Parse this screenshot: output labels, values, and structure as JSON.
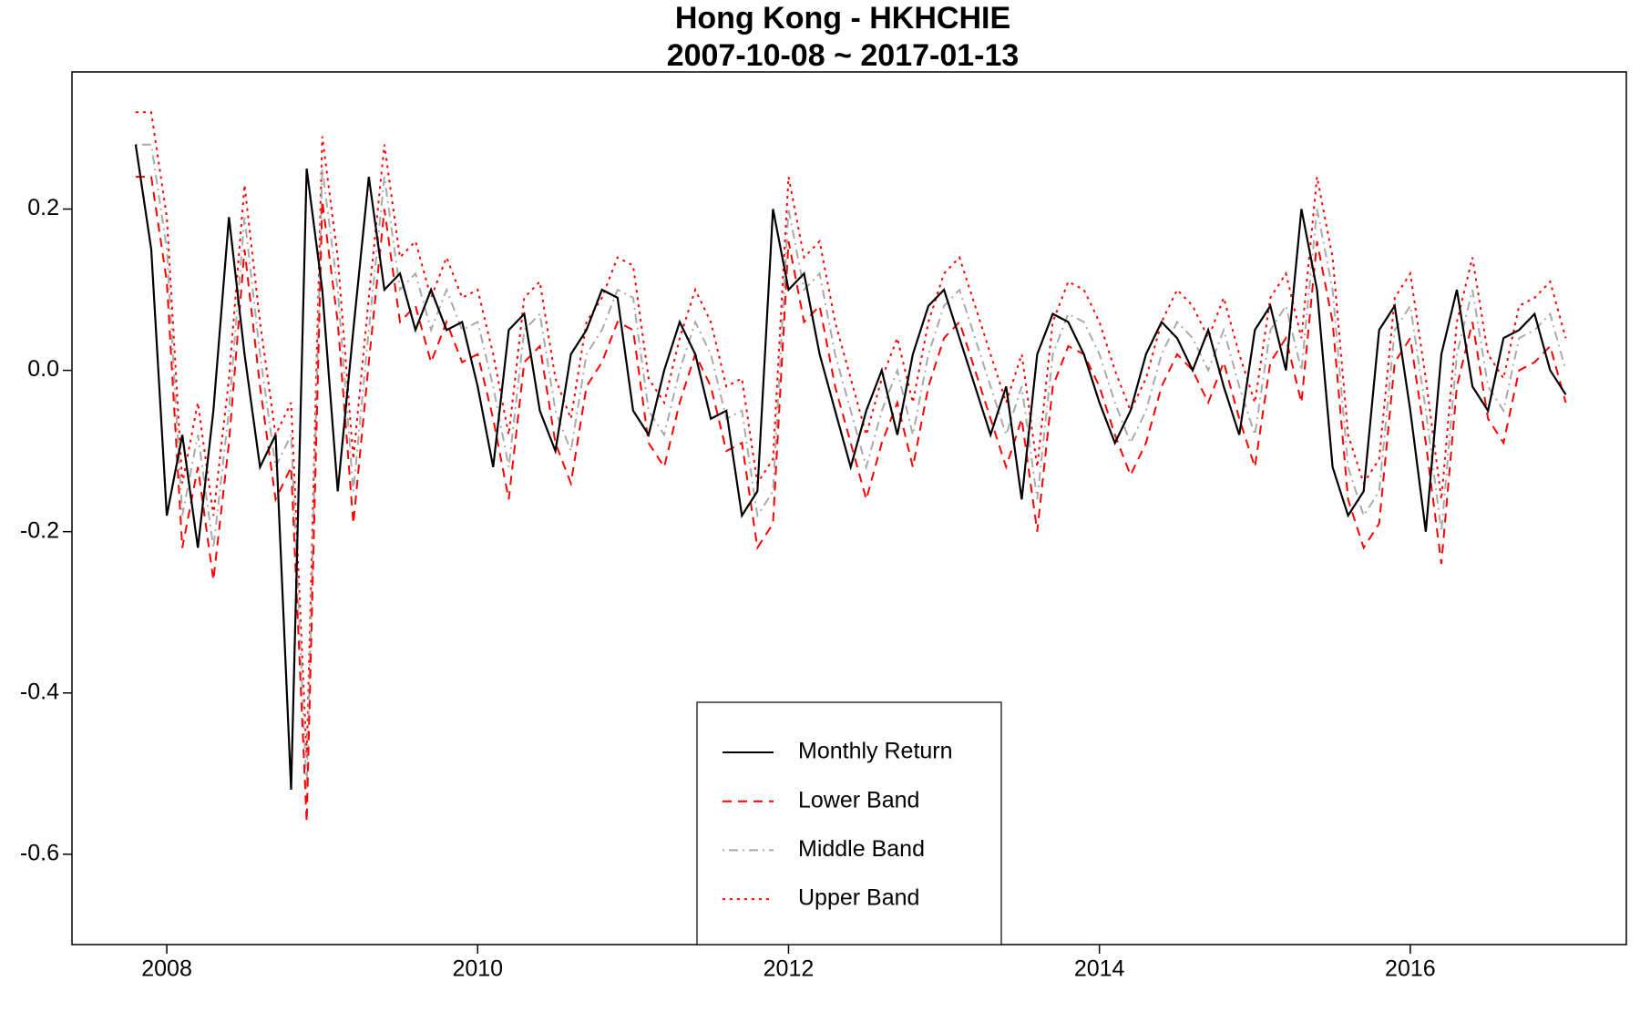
{
  "chart_data": {
    "type": "line",
    "title": "Hong Kong - HKHCHIE",
    "subtitle": "2007-10-08 ~ 2017-01-13",
    "x": [
      2007.8,
      2007.9,
      2008.0,
      2008.1,
      2008.2,
      2008.3,
      2008.4,
      2008.5,
      2008.6,
      2008.7,
      2008.8,
      2008.9,
      2009.0,
      2009.1,
      2009.2,
      2009.3,
      2009.4,
      2009.5,
      2009.6,
      2009.7,
      2009.8,
      2009.9,
      2010.0,
      2010.1,
      2010.2,
      2010.3,
      2010.4,
      2010.5,
      2010.6,
      2010.7,
      2010.8,
      2010.9,
      2011.0,
      2011.1,
      2011.2,
      2011.3,
      2011.4,
      2011.5,
      2011.6,
      2011.7,
      2011.8,
      2011.9,
      2012.0,
      2012.1,
      2012.2,
      2012.3,
      2012.4,
      2012.5,
      2012.6,
      2012.7,
      2012.8,
      2012.9,
      2013.0,
      2013.1,
      2013.2,
      2013.3,
      2013.4,
      2013.5,
      2013.6,
      2013.7,
      2013.8,
      2013.9,
      2014.0,
      2014.1,
      2014.2,
      2014.3,
      2014.4,
      2014.5,
      2014.6,
      2014.7,
      2014.8,
      2014.9,
      2015.0,
      2015.1,
      2015.2,
      2015.3,
      2015.4,
      2015.5,
      2015.6,
      2015.7,
      2015.8,
      2015.9,
      2016.0,
      2016.1,
      2016.2,
      2016.3,
      2016.4,
      2016.5,
      2016.6,
      2016.7,
      2016.8,
      2016.9,
      2017.0
    ],
    "series": [
      {
        "name": "Monthly Return",
        "color": "#000000",
        "style": "solid",
        "values": [
          0.28,
          0.15,
          -0.18,
          -0.08,
          -0.22,
          -0.05,
          0.19,
          0.02,
          -0.12,
          -0.08,
          -0.52,
          0.25,
          0.1,
          -0.15,
          0.05,
          0.24,
          0.1,
          0.12,
          0.05,
          0.1,
          0.05,
          0.06,
          -0.02,
          -0.12,
          0.05,
          0.07,
          -0.05,
          -0.1,
          0.02,
          0.05,
          0.1,
          0.09,
          -0.05,
          -0.08,
          0.0,
          0.06,
          0.02,
          -0.06,
          -0.05,
          -0.18,
          -0.15,
          0.2,
          0.1,
          0.12,
          0.02,
          -0.05,
          -0.12,
          -0.05,
          0.0,
          -0.08,
          0.02,
          0.08,
          0.1,
          0.04,
          -0.02,
          -0.08,
          -0.02,
          -0.16,
          0.02,
          0.07,
          0.06,
          0.02,
          -0.04,
          -0.09,
          -0.05,
          0.02,
          0.06,
          0.04,
          0.0,
          0.05,
          -0.02,
          -0.08,
          0.05,
          0.08,
          0.0,
          0.2,
          0.1,
          -0.12,
          -0.18,
          -0.15,
          0.05,
          0.08,
          -0.05,
          -0.2,
          0.02,
          0.1,
          -0.02,
          -0.05,
          0.04,
          0.05,
          0.07,
          0.0,
          -0.03
        ]
      },
      {
        "name": "Lower Band",
        "color": "#ff0000",
        "style": "dashed",
        "values": [
          0.24,
          0.24,
          0.11,
          -0.22,
          -0.12,
          -0.26,
          -0.09,
          0.15,
          -0.02,
          -0.16,
          -0.12,
          -0.56,
          0.21,
          0.06,
          -0.19,
          0.01,
          0.2,
          0.06,
          0.08,
          0.01,
          0.06,
          0.01,
          0.02,
          -0.06,
          -0.16,
          0.01,
          0.03,
          -0.09,
          -0.14,
          -0.02,
          0.01,
          0.06,
          0.05,
          -0.09,
          -0.12,
          -0.04,
          0.02,
          -0.02,
          -0.1,
          -0.09,
          -0.22,
          -0.19,
          0.16,
          0.06,
          0.08,
          -0.02,
          -0.09,
          -0.16,
          -0.09,
          -0.04,
          -0.12,
          -0.02,
          0.04,
          0.06,
          0.0,
          -0.06,
          -0.12,
          -0.06,
          -0.2,
          -0.02,
          0.03,
          0.02,
          -0.02,
          -0.08,
          -0.13,
          -0.09,
          -0.02,
          0.02,
          0.0,
          -0.04,
          0.01,
          -0.06,
          -0.12,
          0.01,
          0.04,
          -0.04,
          0.16,
          0.06,
          -0.16,
          -0.22,
          -0.19,
          0.01,
          0.04,
          -0.09,
          -0.24,
          -0.02,
          0.06,
          -0.06,
          -0.09,
          0.0,
          0.01,
          0.03,
          -0.04
        ]
      },
      {
        "name": "Middle Band",
        "color": "#aaaaaa",
        "style": "dotdash",
        "values": [
          0.28,
          0.28,
          0.15,
          -0.18,
          -0.08,
          -0.22,
          -0.05,
          0.19,
          0.02,
          -0.12,
          -0.08,
          -0.52,
          0.25,
          0.1,
          -0.15,
          0.05,
          0.24,
          0.1,
          0.12,
          0.05,
          0.1,
          0.05,
          0.06,
          -0.02,
          -0.12,
          0.05,
          0.07,
          -0.05,
          -0.1,
          0.02,
          0.05,
          0.1,
          0.09,
          -0.05,
          -0.08,
          0.0,
          0.06,
          0.02,
          -0.06,
          -0.05,
          -0.18,
          -0.15,
          0.2,
          0.1,
          0.12,
          0.02,
          -0.05,
          -0.12,
          -0.05,
          0.0,
          -0.08,
          0.02,
          0.08,
          0.1,
          0.04,
          -0.02,
          -0.08,
          -0.02,
          -0.16,
          0.02,
          0.07,
          0.06,
          0.02,
          -0.04,
          -0.09,
          -0.05,
          0.02,
          0.06,
          0.04,
          0.0,
          0.05,
          -0.02,
          -0.08,
          0.05,
          0.08,
          0.0,
          0.2,
          0.1,
          -0.12,
          -0.18,
          -0.15,
          0.05,
          0.08,
          -0.05,
          -0.2,
          0.02,
          0.1,
          -0.02,
          -0.05,
          0.04,
          0.05,
          0.07,
          0.0
        ]
      },
      {
        "name": "Upper Band",
        "color": "#ff0000",
        "style": "dotted",
        "values": [
          0.32,
          0.32,
          0.19,
          -0.14,
          -0.04,
          -0.18,
          -0.01,
          0.23,
          0.06,
          -0.08,
          -0.04,
          -0.48,
          0.29,
          0.14,
          -0.11,
          0.09,
          0.28,
          0.14,
          0.16,
          0.09,
          0.14,
          0.09,
          0.1,
          0.02,
          -0.08,
          0.09,
          0.11,
          -0.01,
          -0.06,
          0.06,
          0.09,
          0.14,
          0.13,
          -0.01,
          -0.04,
          0.04,
          0.1,
          0.06,
          -0.02,
          -0.01,
          -0.14,
          -0.11,
          0.24,
          0.14,
          0.16,
          0.06,
          -0.01,
          -0.08,
          -0.01,
          0.04,
          -0.04,
          0.06,
          0.12,
          0.14,
          0.08,
          0.02,
          -0.04,
          0.02,
          -0.12,
          0.06,
          0.11,
          0.1,
          0.06,
          0.0,
          -0.05,
          -0.01,
          0.06,
          0.1,
          0.08,
          0.04,
          0.09,
          0.02,
          -0.04,
          0.09,
          0.12,
          0.04,
          0.24,
          0.14,
          -0.08,
          -0.14,
          -0.11,
          0.09,
          0.12,
          -0.01,
          -0.16,
          0.06,
          0.14,
          0.02,
          -0.01,
          0.08,
          0.09,
          0.11,
          0.04
        ]
      }
    ],
    "xlim": [
      2007.39,
      2017.39
    ],
    "xticks": [
      2008,
      2010,
      2012,
      2014,
      2016
    ],
    "ylim": [
      -0.712,
      0.37
    ],
    "yticks": [
      -0.6,
      -0.4,
      -0.2,
      {
        "value": 0,
        "label": "0.0"
      },
      0.2
    ],
    "grid": false,
    "legend": "bottom"
  }
}
